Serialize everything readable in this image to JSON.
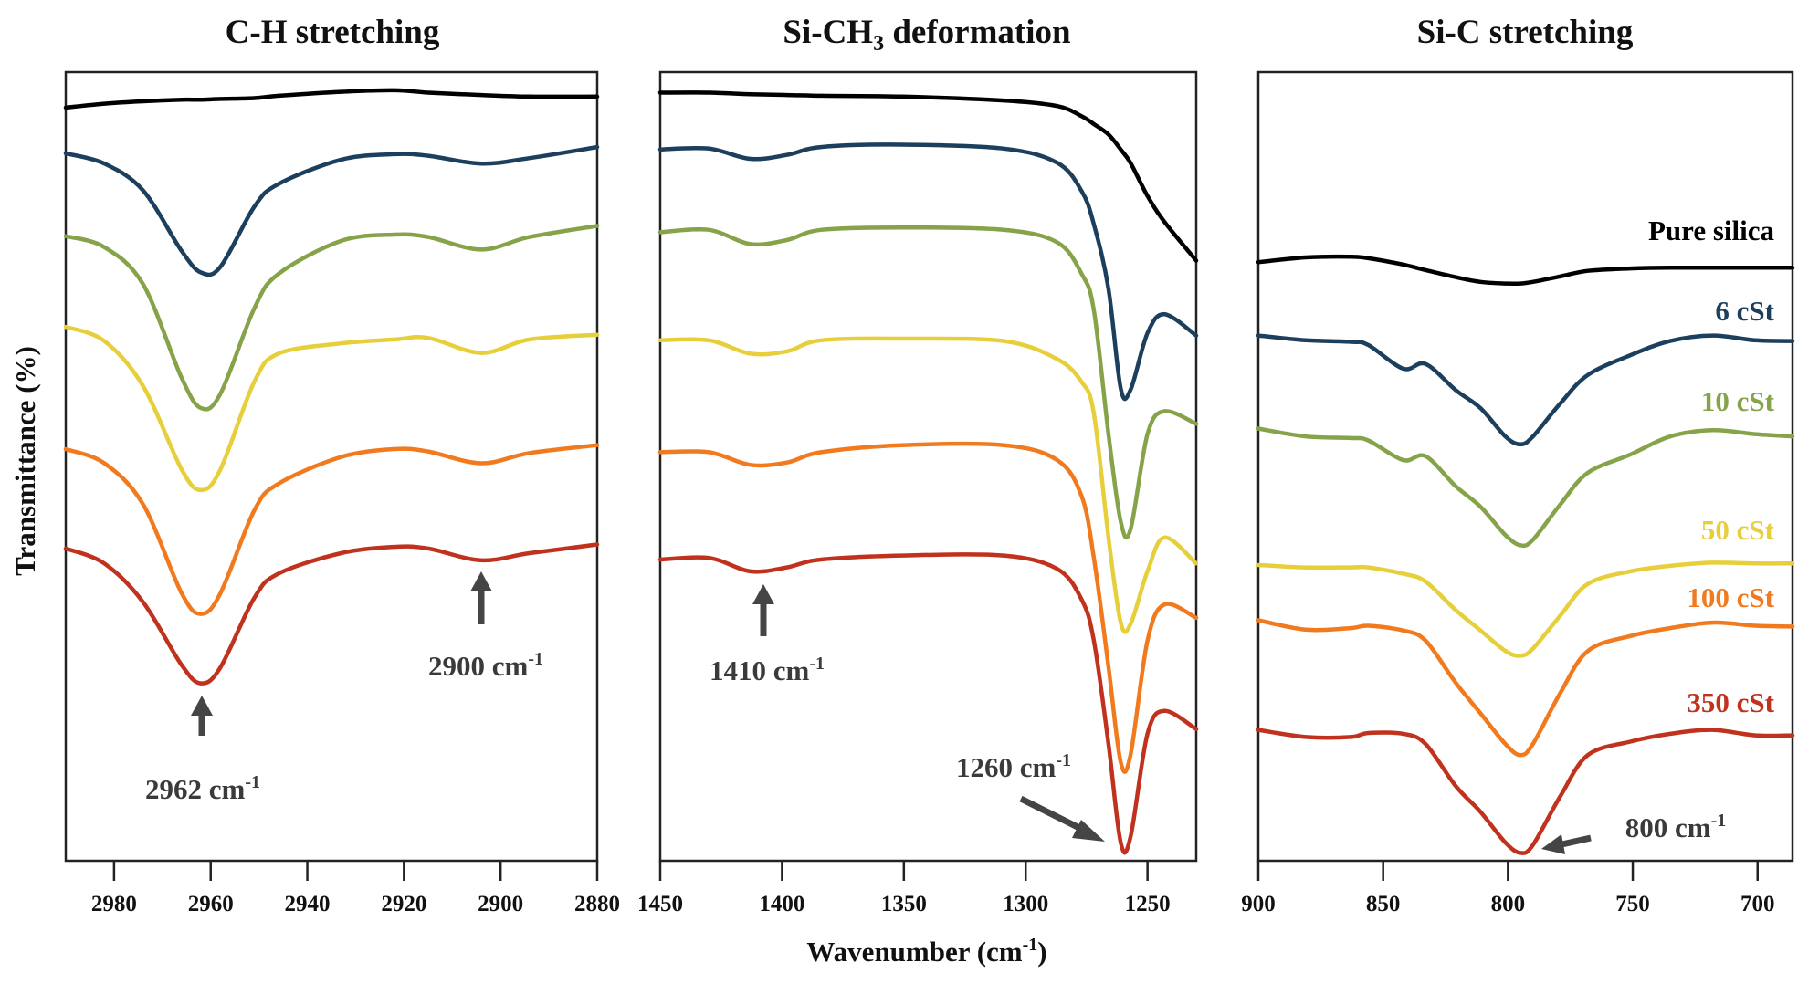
{
  "chart_data": [
    {
      "type": "line",
      "title": "C-H stretching",
      "xlim": [
        2990,
        2880
      ],
      "ylim": [
        0,
        100
      ],
      "xticks": [
        2980,
        2960,
        2940,
        2920,
        2900,
        2880
      ],
      "x": [
        2990,
        2982,
        2974,
        2966,
        2962,
        2958,
        2951,
        2946,
        2933,
        2922,
        2915,
        2904,
        2894,
        2880
      ],
      "series": [
        {
          "color": "#000000",
          "values": [
            95.5,
            96.0,
            96.3,
            96.5,
            96.5,
            96.6,
            96.7,
            97.0,
            97.5,
            97.7,
            97.4,
            97.1,
            96.9,
            96.9
          ]
        },
        {
          "color": "#1b3f5c",
          "values": [
            89.7,
            88.4,
            85.0,
            77.3,
            74.6,
            75.3,
            82.9,
            85.8,
            88.9,
            89.6,
            89.4,
            88.4,
            89.1,
            90.5
          ]
        },
        {
          "color": "#86a34a",
          "values": [
            79.2,
            77.8,
            73.1,
            61.2,
            57.4,
            59.2,
            70.0,
            74.4,
            78.6,
            79.4,
            79.1,
            77.5,
            79.1,
            80.5
          ]
        },
        {
          "color": "#e6cf3b",
          "values": [
            67.7,
            65.9,
            60.2,
            49.6,
            47.0,
            49.6,
            60.7,
            64.3,
            65.6,
            66.1,
            66.3,
            64.4,
            66.1,
            66.7
          ]
        },
        {
          "color": "#f27a1e",
          "values": [
            52.2,
            50.4,
            45.2,
            33.9,
            31.3,
            33.9,
            44.4,
            47.8,
            51.2,
            52.2,
            51.9,
            50.4,
            51.7,
            52.7
          ]
        },
        {
          "color": "#c0321d",
          "values": [
            39.6,
            37.7,
            32.8,
            24.8,
            22.5,
            24.5,
            33.3,
            36.4,
            39.0,
            39.8,
            39.6,
            38.1,
            39.0,
            40.1
          ]
        }
      ],
      "annotations": [
        {
          "text": "2962 cm",
          "sup": "-1",
          "wavenumber": 2962
        },
        {
          "text": "2900 cm",
          "sup": "-1",
          "wavenumber": 2900
        }
      ]
    },
    {
      "type": "line",
      "title": "Si-CH",
      "title_sub": "3",
      "title_rest": " deformation",
      "xlim": [
        1450,
        1230
      ],
      "ylim": [
        0,
        100
      ],
      "xticks": [
        1450,
        1400,
        1350,
        1300,
        1250
      ],
      "x": [
        1450,
        1430,
        1413,
        1398,
        1384,
        1351,
        1309,
        1287,
        1277,
        1272,
        1266,
        1261,
        1257,
        1250,
        1243,
        1230
      ],
      "series": [
        {
          "color": "#000000",
          "values": [
            97.4,
            97.4,
            97.2,
            97.1,
            97.0,
            96.9,
            96.4,
            95.7,
            94.4,
            93.4,
            92.1,
            90.2,
            88.5,
            84.3,
            81.0,
            76.1
          ]
        },
        {
          "color": "#1b3f5c",
          "values": [
            90.2,
            90.3,
            89.0,
            89.5,
            90.5,
            90.8,
            90.3,
            88.5,
            84.9,
            80.7,
            72.5,
            59.9,
            59.7,
            66.9,
            69.3,
            66.6
          ]
        },
        {
          "color": "#86a34a",
          "values": [
            79.7,
            80.0,
            78.2,
            78.7,
            80.0,
            80.3,
            80.0,
            78.4,
            74.4,
            69.8,
            54.1,
            43.0,
            42.0,
            54.1,
            57.0,
            55.4
          ]
        },
        {
          "color": "#e6cf3b",
          "values": [
            66.0,
            66.0,
            64.3,
            64.6,
            66.0,
            66.2,
            65.9,
            63.6,
            60.7,
            56.7,
            41.0,
            30.2,
            30.0,
            36.7,
            41.0,
            37.7
          ]
        },
        {
          "color": "#f27a1e",
          "values": [
            51.8,
            51.8,
            50.2,
            50.5,
            51.8,
            52.7,
            52.7,
            50.8,
            46.2,
            38.4,
            24.6,
            12.5,
            13.4,
            27.9,
            32.5,
            30.8
          ]
        },
        {
          "color": "#c0321d",
          "values": [
            38.2,
            38.4,
            36.7,
            37.2,
            38.2,
            38.7,
            38.7,
            37.0,
            33.1,
            27.9,
            14.8,
            2.3,
            3.0,
            16.1,
            19.0,
            16.7
          ]
        }
      ],
      "annotations": [
        {
          "text": "1410 cm",
          "sup": "-1",
          "wavenumber": 1410
        },
        {
          "text": "1260 cm",
          "sup": "-1",
          "wavenumber": 1260
        }
      ]
    },
    {
      "type": "line",
      "title": "Si-C stretching",
      "xlim": [
        900,
        686
      ],
      "ylim": [
        0,
        100
      ],
      "xticks": [
        900,
        850,
        800,
        750,
        700
      ],
      "x": [
        900,
        881,
        863,
        856,
        842,
        833,
        821,
        811,
        801,
        795,
        790,
        779,
        768,
        751,
        735,
        718,
        701,
        686
      ],
      "series": [
        {
          "name": "Pure silica",
          "color": "#000000",
          "values": [
            75.9,
            76.5,
            76.6,
            76.4,
            75.6,
            74.9,
            74.0,
            73.4,
            73.2,
            73.2,
            73.4,
            74.1,
            74.8,
            75.1,
            75.2,
            75.2,
            75.2,
            75.2
          ]
        },
        {
          "name": "6 cSt",
          "color": "#1b3f5c",
          "values": [
            66.6,
            66.0,
            65.8,
            65.4,
            62.4,
            63.0,
            59.7,
            57.4,
            53.8,
            52.8,
            53.8,
            58.0,
            61.6,
            64.1,
            65.9,
            66.6,
            66.0,
            65.9
          ]
        },
        {
          "name": "10 cSt",
          "color": "#86a34a",
          "values": [
            54.8,
            53.8,
            53.6,
            53.3,
            50.8,
            51.3,
            47.5,
            44.9,
            41.3,
            40.0,
            40.7,
            45.2,
            49.2,
            51.5,
            53.8,
            54.6,
            54.1,
            53.8
          ]
        },
        {
          "name": "50 cSt",
          "color": "#e6cf3b",
          "values": [
            37.5,
            37.2,
            37.2,
            37.2,
            36.4,
            35.4,
            31.8,
            29.2,
            26.6,
            26.0,
            26.9,
            31.1,
            35.1,
            36.7,
            37.4,
            37.8,
            37.7,
            37.7
          ]
        },
        {
          "name": "100 cSt",
          "color": "#f27a1e",
          "values": [
            30.5,
            29.3,
            29.5,
            29.8,
            29.2,
            27.9,
            22.6,
            18.7,
            14.8,
            13.4,
            14.8,
            21.3,
            26.6,
            28.5,
            29.5,
            30.2,
            29.8,
            29.7
          ]
        },
        {
          "name": "350 cSt",
          "color": "#c0321d",
          "values": [
            16.6,
            15.7,
            15.7,
            16.2,
            16.1,
            14.8,
            9.5,
            6.2,
            2.3,
            1.0,
            2.0,
            8.2,
            13.4,
            15.1,
            16.1,
            16.6,
            15.9,
            15.9
          ]
        }
      ],
      "annotations": [
        {
          "text": "800 cm",
          "sup": "-1",
          "wavenumber": 800
        }
      ]
    }
  ],
  "axes": {
    "ylabel": "Transmittance (%)",
    "xlabel": "Wavenumber (cm",
    "xlabel_sup": "-1",
    "xlabel_close": ")"
  }
}
